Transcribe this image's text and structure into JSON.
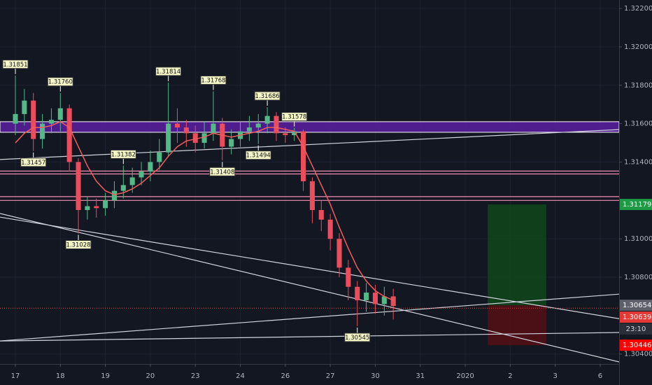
{
  "chart_data": {
    "type": "candlestick",
    "up_color": "#53b987",
    "down_color": "#eb4d5c",
    "ma_color": "#f05d5e",
    "x": [
      0,
      0.2,
      0.4,
      0.6,
      0.8,
      1.0,
      1.2,
      1.4,
      1.6,
      1.8,
      2.0,
      2.2,
      2.4,
      2.6,
      2.8,
      3.0,
      3.2,
      3.4,
      3.6,
      3.8,
      4.0,
      4.2,
      4.4,
      4.6,
      4.8,
      5.0,
      5.2,
      5.4,
      5.6,
      5.8,
      6.0,
      6.2,
      6.4,
      6.6,
      6.8,
      7.0,
      7.2,
      7.4,
      7.6,
      7.8,
      8.0,
      8.2,
      8.4
    ],
    "open": [
      1.316,
      1.3165,
      1.3172,
      1.3152,
      1.316,
      1.3162,
      1.3168,
      1.314,
      1.3115,
      1.3117,
      1.3116,
      1.312,
      1.3125,
      1.3128,
      1.3132,
      1.3135,
      1.314,
      1.3145,
      1.316,
      1.3158,
      1.3155,
      1.315,
      1.3155,
      1.316,
      1.3148,
      1.3152,
      1.3156,
      1.3158,
      1.316,
      1.3164,
      1.3155,
      1.3154,
      1.3156,
      1.313,
      1.3115,
      1.311,
      1.31,
      1.3085,
      1.3075,
      1.3068,
      1.3072,
      1.3066,
      1.307
    ],
    "high": [
      1.31851,
      1.3178,
      1.3176,
      1.3165,
      1.3168,
      1.3176,
      1.317,
      1.3142,
      1.3122,
      1.3121,
      1.3124,
      1.313,
      1.31382,
      1.3137,
      1.314,
      1.3146,
      1.3152,
      1.31814,
      1.3168,
      1.3162,
      1.3159,
      1.3161,
      1.31768,
      1.3163,
      1.3157,
      1.3161,
      1.3164,
      1.3165,
      1.31686,
      1.3166,
      1.3158,
      1.31578,
      1.3157,
      1.3132,
      1.312,
      1.3113,
      1.3103,
      1.3089,
      1.3078,
      1.3077,
      1.3076,
      1.3075,
      1.3074
    ],
    "low": [
      1.3154,
      1.3159,
      1.31457,
      1.3147,
      1.3155,
      1.3156,
      1.3135,
      1.31028,
      1.311,
      1.3111,
      1.3112,
      1.3116,
      1.3121,
      1.3124,
      1.3128,
      1.313,
      1.3136,
      1.3143,
      1.315,
      1.3148,
      1.3145,
      1.3147,
      1.3151,
      1.31408,
      1.3144,
      1.3148,
      1.3151,
      1.31494,
      1.3155,
      1.3151,
      1.315,
      1.3151,
      1.3125,
      1.3108,
      1.3104,
      1.3094,
      1.308,
      1.3068,
      1.30545,
      1.3062,
      1.3061,
      1.306,
      1.3058
    ],
    "close": [
      1.3165,
      1.3172,
      1.3152,
      1.316,
      1.3162,
      1.3168,
      1.314,
      1.3115,
      1.3117,
      1.3116,
      1.312,
      1.3125,
      1.3128,
      1.3132,
      1.3135,
      1.314,
      1.3145,
      1.316,
      1.3158,
      1.3155,
      1.315,
      1.3155,
      1.316,
      1.3148,
      1.3152,
      1.3156,
      1.3158,
      1.316,
      1.3164,
      1.3155,
      1.3154,
      1.3156,
      1.313,
      1.3115,
      1.311,
      1.31,
      1.3085,
      1.3075,
      1.3068,
      1.3072,
      1.3066,
      1.307,
      1.3065
    ],
    "ma": [
      1.315,
      1.3155,
      1.3158,
      1.3158,
      1.3159,
      1.3161,
      1.3158,
      1.3148,
      1.3138,
      1.313,
      1.3125,
      1.3123,
      1.3124,
      1.3126,
      1.3129,
      1.3133,
      1.3137,
      1.3143,
      1.3148,
      1.3151,
      1.3152,
      1.3153,
      1.3155,
      1.3154,
      1.3153,
      1.3154,
      1.3155,
      1.3156,
      1.3158,
      1.3158,
      1.3157,
      1.3156,
      1.3148,
      1.3138,
      1.3128,
      1.3118,
      1.3106,
      1.3095,
      1.3085,
      1.3078,
      1.3073,
      1.307,
      1.3068
    ],
    "pivot_highs": [
      {
        "x": 0,
        "value": 1.31851,
        "label": "1.31851"
      },
      {
        "x": 1.0,
        "value": 1.3176,
        "label": "1.31760"
      },
      {
        "x": 2.4,
        "value": 1.31382,
        "label": "1.31382"
      },
      {
        "x": 3.4,
        "value": 1.31814,
        "label": "1.31814"
      },
      {
        "x": 4.4,
        "value": 1.31768,
        "label": "1.31768"
      },
      {
        "x": 5.6,
        "value": 1.31686,
        "label": "1.31686"
      },
      {
        "x": 6.2,
        "value": 1.31578,
        "label": "1.31578"
      }
    ],
    "pivot_lows": [
      {
        "x": 0.4,
        "value": 1.31457,
        "label": "1.31457"
      },
      {
        "x": 1.4,
        "value": 1.31028,
        "label": "1.31028"
      },
      {
        "x": 4.6,
        "value": 1.31408,
        "label": "1.31408"
      },
      {
        "x": 5.4,
        "value": 1.31494,
        "label": "1.31494"
      },
      {
        "x": 7.6,
        "value": 1.30545,
        "label": "1.30545"
      }
    ],
    "zone": {
      "from": 1.31555,
      "to": 1.3161,
      "color": "#5b1fa0"
    },
    "hlines": [
      1.31353,
      1.31338,
      1.3122,
      1.312
    ],
    "hline_color": "#f48fb1",
    "trendlines": [
      {
        "from": [
          -0.342,
          1.31413
        ],
        "to": [
          13.42,
          1.31569
        ]
      },
      {
        "from": [
          -0.342,
          1.31132
        ],
        "to": [
          13.42,
          1.30359
        ]
      },
      {
        "from": [
          -0.342,
          1.31113
        ],
        "to": [
          13.42,
          1.30584
        ]
      },
      {
        "from": [
          -0.342,
          1.30468
        ],
        "to": [
          13.42,
          1.30712
        ]
      },
      {
        "from": [
          -0.342,
          1.30468
        ],
        "to": [
          13.42,
          1.30512
        ]
      }
    ],
    "position": {
      "x_start": 10.5,
      "x_end": 11.8,
      "entry": 1.30654,
      "target": 1.31179,
      "stop": 1.30446
    },
    "price_tags": [
      {
        "value": 1.31179,
        "color": "#1e9a45"
      },
      {
        "value": 1.30654,
        "color": "#5d606b"
      },
      {
        "value": 1.30639,
        "color": "#e53935"
      },
      {
        "value": 1.30446,
        "color": "#ff0000"
      }
    ],
    "countdown": "23:10",
    "xlim": [
      -0.342,
      13.42
    ],
    "ylim": [
      1.30348,
      1.32244
    ],
    "xticks": [
      {
        "value": 0,
        "label": "17"
      },
      {
        "value": 1,
        "label": "18"
      },
      {
        "value": 2,
        "label": "19"
      },
      {
        "value": 3,
        "label": "20"
      },
      {
        "value": 4,
        "label": "23"
      },
      {
        "value": 5,
        "label": "24"
      },
      {
        "value": 6,
        "label": "26"
      },
      {
        "value": 7,
        "label": "27"
      },
      {
        "value": 8,
        "label": "30"
      },
      {
        "value": 9,
        "label": "31"
      },
      {
        "value": 10,
        "label": "2020"
      },
      {
        "value": 11,
        "label": "2"
      },
      {
        "value": 12,
        "label": "3"
      },
      {
        "value": 13,
        "label": "6"
      }
    ],
    "yticks": [
      {
        "value": 1.322,
        "label": "1.32200"
      },
      {
        "value": 1.32,
        "label": "1.32000"
      },
      {
        "value": 1.318,
        "label": "1.31800"
      },
      {
        "value": 1.316,
        "label": "1.31600"
      },
      {
        "value": 1.314,
        "label": "1.31400"
      },
      {
        "value": 1.31,
        "label": "1.31000"
      },
      {
        "value": 1.308,
        "label": "1.30800"
      },
      {
        "value": 1.304,
        "label": "1.30400"
      }
    ],
    "grid": true
  }
}
